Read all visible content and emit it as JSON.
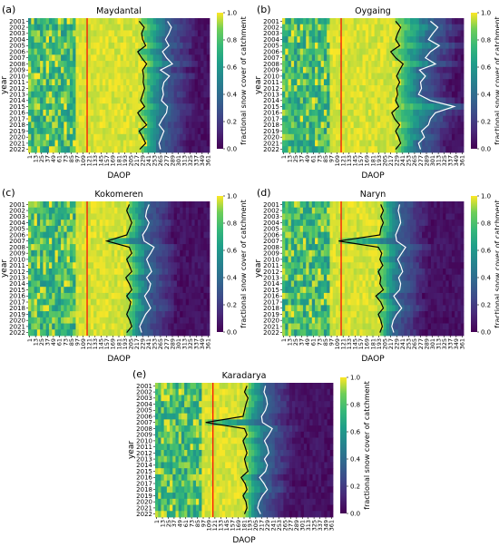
{
  "figure": {
    "colorbar_label": "fractional snow cover of catchment",
    "colorbar_ticks": [
      "0.0",
      "0.2",
      "0.4",
      "0.6",
      "0.8",
      "1.0"
    ],
    "colormap": "viridis",
    "redline_color": "#ff0000",
    "black_line_color": "#000000",
    "white_line_color": "#ffffff"
  },
  "chart_data": [
    {
      "type": "heatmap",
      "panel_label": "(a)",
      "title": "Maydantal",
      "xlabel": "DAOP",
      "ylabel": "year",
      "years": [
        "2001",
        "2002",
        "2003",
        "2004",
        "2005",
        "2006",
        "2007",
        "2008",
        "2009",
        "2010",
        "2011",
        "2012",
        "2013",
        "2014",
        "2015",
        "2016",
        "2017",
        "2018",
        "2019",
        "2020",
        "2021",
        "2022"
      ],
      "x_ticks": [
        "1",
        "13",
        "25",
        "37",
        "49",
        "61",
        "73",
        "85",
        "97",
        "109",
        "121",
        "133",
        "145",
        "157",
        "169",
        "181",
        "193",
        "205",
        "217",
        "229",
        "241",
        "253",
        "265",
        "277",
        "289",
        "301",
        "313",
        "325",
        "337",
        "349",
        "361"
      ],
      "red_line_daop": 120,
      "black_line": [
        225,
        235,
        230,
        232,
        238,
        222,
        230,
        240,
        232,
        234,
        233,
        236,
        232,
        228,
        236,
        222,
        230,
        240,
        225,
        232,
        238,
        226
      ],
      "white_line": [
        282,
        290,
        285,
        278,
        285,
        272,
        280,
        292,
        268,
        286,
        275,
        272,
        274,
        270,
        282,
        280,
        272,
        265,
        275,
        270,
        265,
        268
      ]
    },
    {
      "type": "heatmap",
      "panel_label": "(b)",
      "title": "Oygaing",
      "xlabel": "DAOP",
      "ylabel": "year",
      "years": [
        "2001",
        "2002",
        "2003",
        "2004",
        "2005",
        "2006",
        "2007",
        "2008",
        "2009",
        "2010",
        "2011",
        "2012",
        "2013",
        "2014",
        "2015",
        "2016",
        "2017",
        "2018",
        "2019",
        "2020",
        "2021",
        "2022"
      ],
      "x_ticks": [
        "1",
        "13",
        "25",
        "37",
        "49",
        "61",
        "73",
        "85",
        "97",
        "109",
        "121",
        "133",
        "145",
        "157",
        "169",
        "181",
        "193",
        "205",
        "217",
        "229",
        "241",
        "253",
        "265",
        "277",
        "289",
        "301",
        "313",
        "325",
        "337",
        "349",
        "361"
      ],
      "red_line_daop": 120,
      "black_line": [
        230,
        240,
        234,
        230,
        238,
        220,
        230,
        245,
        238,
        232,
        238,
        232,
        234,
        230,
        236,
        222,
        228,
        238,
        230,
        236,
        240,
        230
      ],
      "white_line": [
        300,
        315,
        305,
        296,
        318,
        300,
        290,
        310,
        278,
        290,
        280,
        282,
        276,
        300,
        348,
        310,
        300,
        296,
        282,
        288,
        276,
        280
      ]
    },
    {
      "type": "heatmap",
      "panel_label": "(c)",
      "title": "Kokomeren",
      "xlabel": "DAOP",
      "ylabel": "year",
      "years": [
        "2001",
        "2002",
        "2003",
        "2004",
        "2005",
        "2006",
        "2007",
        "2008",
        "2009",
        "2010",
        "2011",
        "2012",
        "2013",
        "2014",
        "2015",
        "2016",
        "2017",
        "2018",
        "2019",
        "2020",
        "2021",
        "2022"
      ],
      "x_ticks": [
        "1",
        "13",
        "25",
        "37",
        "49",
        "61",
        "73",
        "85",
        "97",
        "109",
        "121",
        "133",
        "145",
        "157",
        "169",
        "181",
        "193",
        "205",
        "217",
        "229",
        "241",
        "253",
        "265",
        "277",
        "289",
        "301",
        "313",
        "325",
        "337",
        "349",
        "361"
      ],
      "red_line_daop": 120,
      "black_line": [
        205,
        200,
        205,
        210,
        205,
        200,
        160,
        205,
        210,
        200,
        205,
        210,
        198,
        205,
        210,
        200,
        208,
        205,
        200,
        206,
        210,
        200
      ],
      "white_line": [
        245,
        240,
        238,
        245,
        240,
        232,
        235,
        255,
        248,
        240,
        245,
        250,
        240,
        248,
        245,
        236,
        242,
        248,
        238,
        232,
        226,
        230
      ]
    },
    {
      "type": "heatmap",
      "panel_label": "(d)",
      "title": "Naryn",
      "xlabel": "DAOP",
      "ylabel": "year",
      "years": [
        "2001",
        "2002",
        "2003",
        "2004",
        "2005",
        "2006",
        "2007",
        "2008",
        "2009",
        "2010",
        "2011",
        "2012",
        "2013",
        "2014",
        "2015",
        "2016",
        "2017",
        "2018",
        "2019",
        "2020",
        "2021",
        "2022"
      ],
      "x_ticks": [
        "1",
        "13",
        "25",
        "37",
        "49",
        "61",
        "73",
        "85",
        "97",
        "109",
        "121",
        "133",
        "145",
        "157",
        "169",
        "181",
        "193",
        "205",
        "217",
        "229",
        "241",
        "253",
        "265",
        "277",
        "289",
        "301",
        "313",
        "325",
        "337",
        "349",
        "361"
      ],
      "red_line_daop": 120,
      "black_line": [
        200,
        205,
        200,
        205,
        200,
        198,
        115,
        195,
        202,
        198,
        204,
        195,
        200,
        198,
        205,
        190,
        200,
        205,
        195,
        200,
        203,
        198
      ],
      "white_line": [
        238,
        235,
        238,
        240,
        235,
        230,
        232,
        250,
        242,
        234,
        240,
        244,
        236,
        240,
        238,
        226,
        234,
        242,
        232,
        225,
        222,
        226
      ]
    },
    {
      "type": "heatmap",
      "panel_label": "(e)",
      "title": "Karadarya",
      "xlabel": "DAOP",
      "ylabel": "year",
      "years": [
        "2001",
        "2002",
        "2003",
        "2004",
        "2005",
        "2006",
        "2007",
        "2008",
        "2009",
        "2010",
        "2011",
        "2012",
        "2013",
        "2014",
        "2015",
        "2016",
        "2017",
        "2018",
        "2019",
        "2020",
        "2021",
        "2022"
      ],
      "x_ticks": [
        "1",
        "13",
        "25",
        "37",
        "49",
        "61",
        "73",
        "85",
        "97",
        "109",
        "121",
        "133",
        "145",
        "157",
        "169",
        "181",
        "193",
        "205",
        "217",
        "229",
        "241",
        "253",
        "265",
        "277",
        "289",
        "301",
        "313",
        "325",
        "337",
        "349",
        "361"
      ],
      "red_line_daop": 120,
      "black_line": [
        190,
        185,
        192,
        188,
        185,
        182,
        105,
        185,
        190,
        182,
        186,
        190,
        185,
        188,
        192,
        178,
        186,
        190,
        182,
        188,
        190,
        185
      ],
      "white_line": [
        228,
        225,
        230,
        232,
        228,
        220,
        222,
        242,
        235,
        226,
        232,
        235,
        226,
        232,
        228,
        216,
        225,
        232,
        222,
        215,
        212,
        218
      ]
    }
  ]
}
